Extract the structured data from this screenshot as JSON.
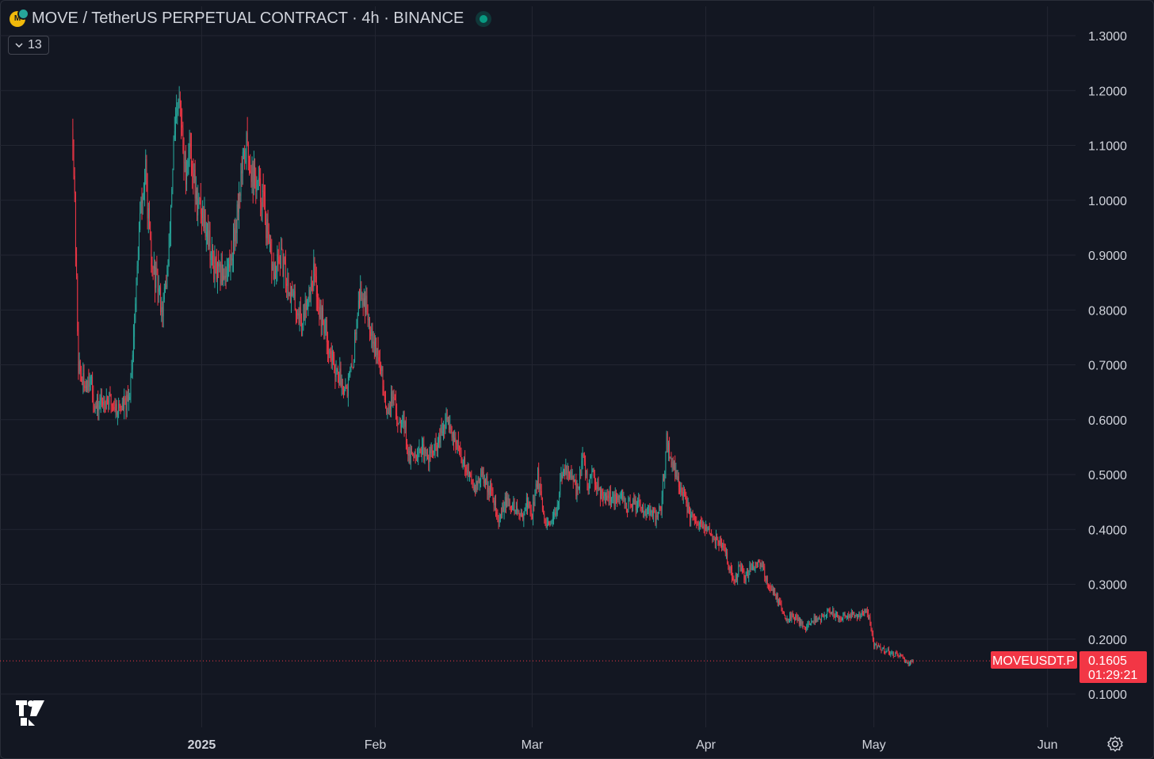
{
  "header": {
    "title": "MOVE / TetherUS PERPETUAL CONTRACT · 4h · BINANCE",
    "indicator_count": "13"
  },
  "price_tag": {
    "symbol": "MOVEUSDT.P",
    "price": "0.1605",
    "countdown": "01:29:21"
  },
  "icons": {
    "symbol": "move-coin-icon",
    "status": "market-open-dot-icon",
    "toggle": "chevron-down-icon",
    "logo": "tradingview-logo-icon",
    "settings": "gear-icon"
  },
  "colors": {
    "background": "#131722",
    "grid": "#232632",
    "up": "#26a69a",
    "down": "#f23645",
    "text": "#d1d4dc"
  },
  "chart_data": {
    "type": "candlestick",
    "interval": "4h",
    "ylim": [
      0.06,
      1.32
    ],
    "y_ticks": [
      "0.1000",
      "0.2000",
      "0.3000",
      "0.4000",
      "0.5000",
      "0.6000",
      "0.7000",
      "0.8000",
      "0.9000",
      "1.0000",
      "1.1000",
      "1.2000",
      "1.3000"
    ],
    "x_ticks": [
      {
        "label": "2025",
        "date": "2025-01-01",
        "bold": true
      },
      {
        "label": "Feb",
        "date": "2025-02-01",
        "bold": false
      },
      {
        "label": "Mar",
        "date": "2025-03-01",
        "bold": false
      },
      {
        "label": "Apr",
        "date": "2025-04-01",
        "bold": false
      },
      {
        "label": "May",
        "date": "2025-05-01",
        "bold": false
      },
      {
        "label": "Jun",
        "date": "2025-06-01",
        "bold": false
      }
    ],
    "x_range": [
      "2024-11-26",
      "2025-06-06"
    ],
    "first_bar": "2024-12-09",
    "last_bar": "2025-05-08",
    "current_price": 0.1605,
    "price_path": [
      [
        "2024-12-09",
        0.7
      ],
      [
        "2024-12-09",
        1.13
      ],
      [
        "2024-12-10",
        0.7
      ],
      [
        "2024-12-11",
        0.66
      ],
      [
        "2024-12-12",
        0.68
      ],
      [
        "2024-12-13",
        0.62
      ],
      [
        "2024-12-15",
        0.64
      ],
      [
        "2024-12-17",
        0.62
      ],
      [
        "2024-12-19",
        0.63
      ],
      [
        "2024-12-20",
        0.78
      ],
      [
        "2024-12-21",
        0.97
      ],
      [
        "2024-12-22",
        1.05
      ],
      [
        "2024-12-23",
        0.88
      ],
      [
        "2024-12-24",
        0.85
      ],
      [
        "2024-12-25",
        0.8
      ],
      [
        "2024-12-26",
        0.88
      ],
      [
        "2024-12-27",
        1.1
      ],
      [
        "2024-12-28",
        1.18
      ],
      [
        "2024-12-29",
        1.05
      ],
      [
        "2024-12-30",
        1.1
      ],
      [
        "2024-12-31",
        1.0
      ],
      [
        "2025-01-01",
        0.98
      ],
      [
        "2025-01-02",
        0.95
      ],
      [
        "2025-01-03",
        0.88
      ],
      [
        "2025-01-04",
        0.86
      ],
      [
        "2025-01-06",
        0.88
      ],
      [
        "2025-01-07",
        0.95
      ],
      [
        "2025-01-08",
        1.04
      ],
      [
        "2025-01-09",
        1.1
      ],
      [
        "2025-01-10",
        1.05
      ],
      [
        "2025-01-12",
        1.0
      ],
      [
        "2025-01-13",
        0.91
      ],
      [
        "2025-01-14",
        0.86
      ],
      [
        "2025-01-15",
        0.9
      ],
      [
        "2025-01-16",
        0.86
      ],
      [
        "2025-01-17",
        0.83
      ],
      [
        "2025-01-18",
        0.8
      ],
      [
        "2025-01-19",
        0.78
      ],
      [
        "2025-01-20",
        0.83
      ],
      [
        "2025-01-21",
        0.87
      ],
      [
        "2025-01-22",
        0.8
      ],
      [
        "2025-01-23",
        0.77
      ],
      [
        "2025-01-24",
        0.72
      ],
      [
        "2025-01-25",
        0.69
      ],
      [
        "2025-01-26",
        0.67
      ],
      [
        "2025-01-27",
        0.66
      ],
      [
        "2025-01-28",
        0.7
      ],
      [
        "2025-01-29",
        0.83
      ],
      [
        "2025-01-30",
        0.82
      ],
      [
        "2025-01-31",
        0.78
      ],
      [
        "2025-02-01",
        0.74
      ],
      [
        "2025-02-02",
        0.69
      ],
      [
        "2025-02-03",
        0.62
      ],
      [
        "2025-02-04",
        0.64
      ],
      [
        "2025-02-05",
        0.6
      ],
      [
        "2025-02-06",
        0.61
      ],
      [
        "2025-02-07",
        0.53
      ],
      [
        "2025-02-09",
        0.55
      ],
      [
        "2025-02-10",
        0.53
      ],
      [
        "2025-02-12",
        0.55
      ],
      [
        "2025-02-13",
        0.58
      ],
      [
        "2025-02-14",
        0.6
      ],
      [
        "2025-02-15",
        0.57
      ],
      [
        "2025-02-16",
        0.54
      ],
      [
        "2025-02-17",
        0.52
      ],
      [
        "2025-02-18",
        0.49
      ],
      [
        "2025-02-19",
        0.48
      ],
      [
        "2025-02-20",
        0.5
      ],
      [
        "2025-02-21",
        0.48
      ],
      [
        "2025-02-22",
        0.46
      ],
      [
        "2025-02-23",
        0.41
      ],
      [
        "2025-02-24",
        0.45
      ],
      [
        "2025-02-26",
        0.44
      ],
      [
        "2025-02-27",
        0.42
      ],
      [
        "2025-02-28",
        0.45
      ],
      [
        "2025-03-01",
        0.43
      ],
      [
        "2025-03-02",
        0.5
      ],
      [
        "2025-03-03",
        0.42
      ],
      [
        "2025-03-04",
        0.4
      ],
      [
        "2025-03-05",
        0.42
      ],
      [
        "2025-03-06",
        0.48
      ],
      [
        "2025-03-07",
        0.52
      ],
      [
        "2025-03-08",
        0.49
      ],
      [
        "2025-03-09",
        0.47
      ],
      [
        "2025-03-10",
        0.53
      ],
      [
        "2025-03-11",
        0.48
      ],
      [
        "2025-03-12",
        0.5
      ],
      [
        "2025-03-13",
        0.47
      ],
      [
        "2025-03-15",
        0.46
      ],
      [
        "2025-03-16",
        0.45
      ],
      [
        "2025-03-17",
        0.46
      ],
      [
        "2025-03-18",
        0.44
      ],
      [
        "2025-03-20",
        0.45
      ],
      [
        "2025-03-21",
        0.44
      ],
      [
        "2025-03-22",
        0.43
      ],
      [
        "2025-03-23",
        0.42
      ],
      [
        "2025-03-24",
        0.44
      ],
      [
        "2025-03-25",
        0.56
      ],
      [
        "2025-03-26",
        0.52
      ],
      [
        "2025-03-27",
        0.49
      ],
      [
        "2025-03-28",
        0.46
      ],
      [
        "2025-03-29",
        0.43
      ],
      [
        "2025-03-30",
        0.41
      ],
      [
        "2025-04-01",
        0.4
      ],
      [
        "2025-04-02",
        0.39
      ],
      [
        "2025-04-03",
        0.38
      ],
      [
        "2025-04-04",
        0.37
      ],
      [
        "2025-04-05",
        0.34
      ],
      [
        "2025-04-06",
        0.3
      ],
      [
        "2025-04-07",
        0.33
      ],
      [
        "2025-04-08",
        0.31
      ],
      [
        "2025-04-09",
        0.33
      ],
      [
        "2025-04-10",
        0.34
      ],
      [
        "2025-04-11",
        0.34
      ],
      [
        "2025-04-12",
        0.3
      ],
      [
        "2025-04-13",
        0.29
      ],
      [
        "2025-04-14",
        0.27
      ],
      [
        "2025-04-15",
        0.24
      ],
      [
        "2025-04-17",
        0.24
      ],
      [
        "2025-04-18",
        0.23
      ],
      [
        "2025-04-19",
        0.22
      ],
      [
        "2025-04-20",
        0.235
      ],
      [
        "2025-04-22",
        0.24
      ],
      [
        "2025-04-23",
        0.25
      ],
      [
        "2025-04-25",
        0.24
      ],
      [
        "2025-04-27",
        0.245
      ],
      [
        "2025-04-28",
        0.24
      ],
      [
        "2025-04-29",
        0.25
      ],
      [
        "2025-04-30",
        0.245
      ],
      [
        "2025-05-01",
        0.19
      ],
      [
        "2025-05-02",
        0.185
      ],
      [
        "2025-05-03",
        0.18
      ],
      [
        "2025-05-04",
        0.175
      ],
      [
        "2025-05-05",
        0.17
      ],
      [
        "2025-05-06",
        0.165
      ],
      [
        "2025-05-07",
        0.158
      ],
      [
        "2025-05-08",
        0.1605
      ]
    ]
  }
}
